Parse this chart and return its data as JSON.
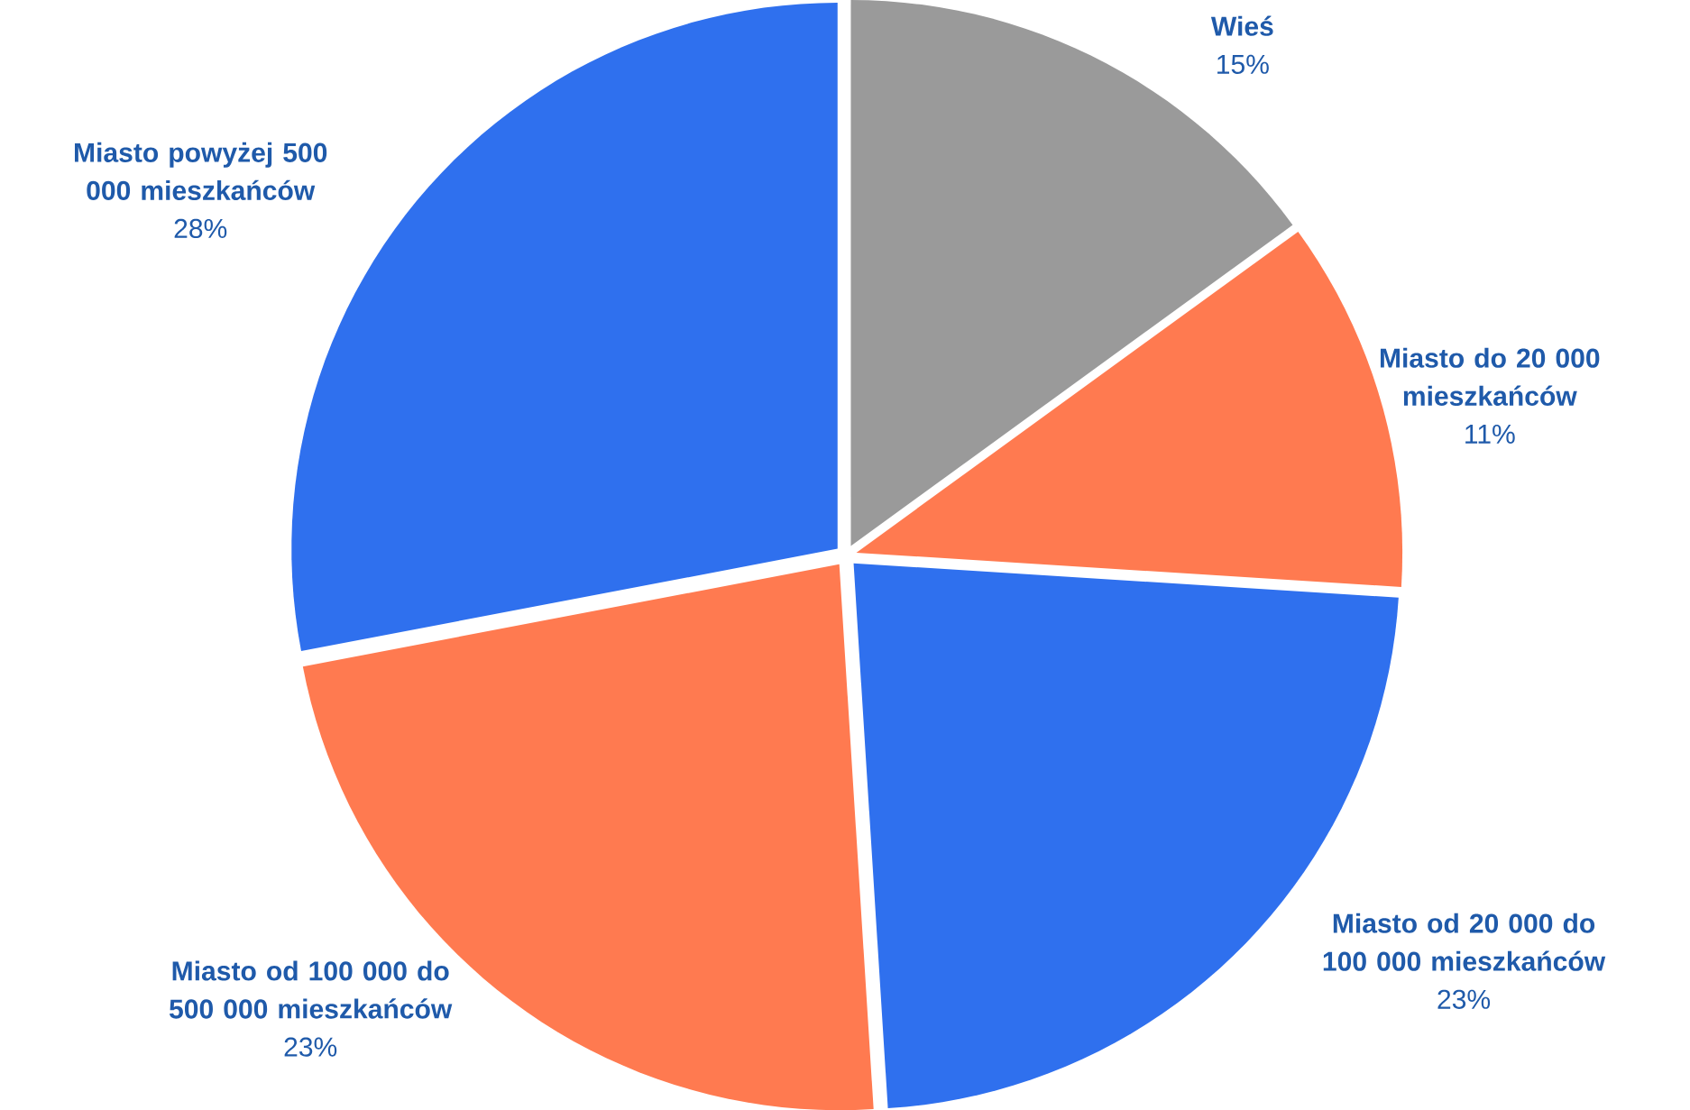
{
  "chart_data": {
    "type": "pie",
    "categories": [
      "Wieś",
      "Miasto do 20 000 mieszkańców",
      "Miasto od 20 000 do 100 000 mieszkańców",
      "Miasto od 100 000 do 500 000 mieszkańców",
      "Miasto powyżej 500 000 mieszkańców"
    ],
    "values": [
      15,
      11,
      23,
      23,
      28
    ],
    "value_labels": [
      "15%",
      "11%",
      "23%",
      "23%",
      "28%"
    ],
    "colors": [
      "#9a9a9a",
      "#ff7a50",
      "#2f70ee",
      "#ff7a50",
      "#2f70ee"
    ]
  }
}
